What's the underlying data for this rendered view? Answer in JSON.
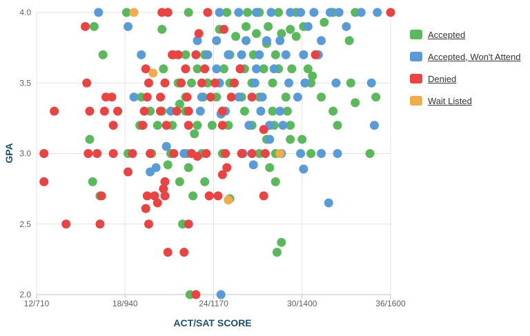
{
  "chart_data": {
    "type": "scatter",
    "title": "",
    "xlabel": "ACT/SAT SCORE",
    "ylabel": "GPA",
    "x_ticks": [
      "12/710",
      "18/940",
      "24/1170",
      "30/1400",
      "36/1600"
    ],
    "x_tick_values": [
      12,
      18,
      24,
      30,
      36
    ],
    "xlim": [
      12,
      36
    ],
    "y_ticks": [
      "2.0",
      "2.5",
      "3.0",
      "3.5",
      "4.0"
    ],
    "y_tick_values": [
      2.0,
      2.5,
      3.0,
      3.5,
      4.0
    ],
    "ylim": [
      2.0,
      4.0
    ],
    "grid": true,
    "legend_position": "right",
    "series": [
      {
        "name": "Accepted",
        "color": "#5cb85c",
        "points": [
          [
            18.1,
            4.0
          ],
          [
            24.9,
            4.0
          ],
          [
            26.3,
            4.0
          ],
          [
            27.1,
            4.0
          ],
          [
            28.4,
            4.0
          ],
          [
            29.6,
            4.0
          ],
          [
            32.1,
            4.0
          ],
          [
            33.6,
            4.0
          ],
          [
            22.3,
            4.0
          ],
          [
            15.9,
            3.9
          ],
          [
            20.5,
            3.88
          ],
          [
            24.4,
            3.88
          ],
          [
            26.2,
            3.9
          ],
          [
            27.7,
            3.9
          ],
          [
            29.2,
            3.88
          ],
          [
            30.1,
            3.9
          ],
          [
            31.5,
            3.93
          ],
          [
            26.9,
            3.85
          ],
          [
            25.5,
            3.83
          ],
          [
            28.6,
            3.85
          ],
          [
            29.6,
            3.83
          ],
          [
            16.5,
            3.7
          ],
          [
            21.3,
            3.7
          ],
          [
            22.1,
            3.7
          ],
          [
            23.4,
            3.7
          ],
          [
            25.1,
            3.7
          ],
          [
            26.7,
            3.7
          ],
          [
            28.2,
            3.7
          ],
          [
            27.6,
            3.78
          ],
          [
            33.2,
            3.8
          ],
          [
            20.6,
            3.6
          ],
          [
            22.9,
            3.6
          ],
          [
            24.7,
            3.6
          ],
          [
            26.1,
            3.6
          ],
          [
            27.4,
            3.6
          ],
          [
            28.4,
            3.6
          ],
          [
            29.3,
            3.6
          ],
          [
            30.4,
            3.6
          ],
          [
            30.7,
            3.55
          ],
          [
            21.6,
            3.5
          ],
          [
            22.5,
            3.5
          ],
          [
            23.6,
            3.5
          ],
          [
            25.1,
            3.5
          ],
          [
            26.6,
            3.5
          ],
          [
            28.0,
            3.5
          ],
          [
            30.2,
            3.5
          ],
          [
            30.6,
            3.5
          ],
          [
            33.3,
            3.5
          ],
          [
            19.1,
            3.4
          ],
          [
            22.1,
            3.4
          ],
          [
            23.3,
            3.4
          ],
          [
            24.2,
            3.4
          ],
          [
            25.9,
            3.4
          ],
          [
            27.1,
            3.4
          ],
          [
            28.9,
            3.4
          ],
          [
            31.3,
            3.4
          ],
          [
            35.0,
            3.4
          ],
          [
            21.7,
            3.35
          ],
          [
            33.6,
            3.36
          ],
          [
            19.7,
            3.3
          ],
          [
            20.5,
            3.3
          ],
          [
            22.1,
            3.3
          ],
          [
            24.6,
            3.3
          ],
          [
            26.1,
            3.3
          ],
          [
            28.0,
            3.3
          ],
          [
            29.0,
            3.3
          ],
          [
            32.1,
            3.3
          ],
          [
            19.0,
            3.2
          ],
          [
            20.2,
            3.2
          ],
          [
            21.2,
            3.2
          ],
          [
            22.9,
            3.2
          ],
          [
            23.9,
            3.2
          ],
          [
            25.0,
            3.2
          ],
          [
            26.6,
            3.2
          ],
          [
            28.1,
            3.2
          ],
          [
            29.2,
            3.2
          ],
          [
            32.4,
            3.2
          ],
          [
            22.7,
            3.14
          ],
          [
            15.6,
            3.1
          ],
          [
            27.6,
            3.1
          ],
          [
            29.2,
            3.1
          ],
          [
            30.0,
            3.1
          ],
          [
            18.2,
            3.0
          ],
          [
            19.8,
            3.0
          ],
          [
            21.1,
            3.0
          ],
          [
            22.2,
            3.0
          ],
          [
            23.2,
            3.0
          ],
          [
            24.6,
            3.0
          ],
          [
            25.9,
            3.0
          ],
          [
            27.1,
            3.0
          ],
          [
            28.2,
            3.0
          ],
          [
            30.6,
            3.0
          ],
          [
            34.6,
            3.0
          ],
          [
            20.9,
            2.92
          ],
          [
            22.3,
            2.9
          ],
          [
            27.8,
            2.9
          ],
          [
            15.8,
            2.8
          ],
          [
            21.7,
            2.8
          ],
          [
            23.4,
            2.8
          ],
          [
            28.2,
            2.8
          ],
          [
            16.3,
            2.7
          ],
          [
            22.6,
            2.7
          ],
          [
            25.1,
            2.68
          ],
          [
            21.9,
            2.5
          ],
          [
            28.6,
            2.37
          ],
          [
            28.3,
            2.3
          ],
          [
            22.4,
            2.0
          ]
        ]
      },
      {
        "name": "Accepted, Won't Attend",
        "color": "#5b9bd5",
        "points": [
          [
            16.2,
            4.0
          ],
          [
            24.4,
            4.0
          ],
          [
            25.7,
            4.0
          ],
          [
            26.9,
            4.0
          ],
          [
            27.9,
            4.0
          ],
          [
            29.2,
            4.0
          ],
          [
            29.9,
            4.0
          ],
          [
            30.8,
            4.0
          ],
          [
            31.9,
            4.0
          ],
          [
            32.5,
            4.0
          ],
          [
            34.0,
            4.0
          ],
          [
            35.1,
            4.0
          ],
          [
            18.2,
            3.9
          ],
          [
            30.4,
            3.9
          ],
          [
            33.0,
            3.9
          ],
          [
            22.9,
            3.8
          ],
          [
            24.2,
            3.8
          ],
          [
            26.2,
            3.8
          ],
          [
            27.6,
            3.8
          ],
          [
            28.5,
            3.8
          ],
          [
            31.3,
            3.8
          ],
          [
            19.1,
            3.7
          ],
          [
            23.6,
            3.7
          ],
          [
            25.0,
            3.7
          ],
          [
            25.9,
            3.7
          ],
          [
            27.1,
            3.7
          ],
          [
            28.9,
            3.7
          ],
          [
            30.1,
            3.7
          ],
          [
            31.1,
            3.7
          ],
          [
            24.2,
            3.6
          ],
          [
            25.8,
            3.6
          ],
          [
            26.9,
            3.6
          ],
          [
            28.1,
            3.6
          ],
          [
            24.4,
            3.5
          ],
          [
            25.4,
            3.5
          ],
          [
            26.8,
            3.5
          ],
          [
            29.1,
            3.5
          ],
          [
            30.2,
            3.5
          ],
          [
            32.3,
            3.5
          ],
          [
            34.7,
            3.5
          ],
          [
            18.6,
            3.4
          ],
          [
            23.2,
            3.4
          ],
          [
            25.7,
            3.4
          ],
          [
            27.3,
            3.4
          ],
          [
            29.7,
            3.4
          ],
          [
            21.1,
            3.3
          ],
          [
            23.1,
            3.3
          ],
          [
            24.8,
            3.3
          ],
          [
            27.2,
            3.3
          ],
          [
            28.5,
            3.3
          ],
          [
            24.5,
            3.28
          ],
          [
            26.4,
            3.2
          ],
          [
            27.8,
            3.2
          ],
          [
            28.7,
            3.2
          ],
          [
            34.9,
            3.2
          ],
          [
            27.8,
            3.1
          ],
          [
            20.8,
            3.05
          ],
          [
            22.0,
            3.0
          ],
          [
            26.0,
            3.0
          ],
          [
            28.6,
            3.0
          ],
          [
            29.9,
            3.0
          ],
          [
            31.3,
            3.0
          ],
          [
            32.4,
            3.0
          ],
          [
            26.7,
            2.92
          ],
          [
            30.1,
            2.89
          ],
          [
            20.1,
            2.9
          ],
          [
            19.7,
            2.87
          ],
          [
            31.8,
            2.65
          ],
          [
            24.5,
            2.0
          ]
        ]
      },
      {
        "name": "Denied",
        "color": "#e84444",
        "points": [
          [
            20.5,
            4.0
          ],
          [
            20.9,
            4.0
          ],
          [
            23.6,
            4.0
          ],
          [
            36.0,
            4.0
          ],
          [
            15.3,
            3.9
          ],
          [
            23.0,
            3.85
          ],
          [
            24.7,
            3.88
          ],
          [
            21.2,
            3.7
          ],
          [
            21.6,
            3.7
          ],
          [
            22.8,
            3.7
          ],
          [
            30.9,
            3.7
          ],
          [
            19.4,
            3.6
          ],
          [
            22.1,
            3.6
          ],
          [
            23.4,
            3.6
          ],
          [
            25.8,
            3.6
          ],
          [
            15.4,
            3.5
          ],
          [
            19.6,
            3.5
          ],
          [
            20.7,
            3.5
          ],
          [
            21.8,
            3.5
          ],
          [
            23.2,
            3.5
          ],
          [
            24.1,
            3.5
          ],
          [
            25.4,
            3.5
          ],
          [
            16.7,
            3.4
          ],
          [
            17.1,
            3.4
          ],
          [
            19.5,
            3.4
          ],
          [
            20.4,
            3.4
          ],
          [
            22.2,
            3.4
          ],
          [
            23.8,
            3.4
          ],
          [
            25.2,
            3.4
          ],
          [
            26.6,
            3.4
          ],
          [
            13.2,
            3.3
          ],
          [
            15.6,
            3.3
          ],
          [
            16.6,
            3.3
          ],
          [
            17.5,
            3.3
          ],
          [
            19.3,
            3.3
          ],
          [
            20.4,
            3.3
          ],
          [
            21.5,
            3.3
          ],
          [
            22.3,
            3.3
          ],
          [
            24.6,
            3.3
          ],
          [
            17.2,
            3.2
          ],
          [
            19.2,
            3.2
          ],
          [
            20.8,
            3.2
          ],
          [
            22.3,
            3.2
          ],
          [
            24.6,
            3.2
          ],
          [
            27.4,
            3.17
          ],
          [
            12.5,
            3.0
          ],
          [
            15.5,
            3.0
          ],
          [
            16.1,
            3.0
          ],
          [
            17.2,
            3.0
          ],
          [
            18.5,
            3.0
          ],
          [
            19.7,
            3.0
          ],
          [
            21.3,
            3.0
          ],
          [
            22.5,
            3.0
          ],
          [
            23.5,
            3.0
          ],
          [
            24.8,
            3.0
          ],
          [
            25.9,
            3.0
          ],
          [
            26.6,
            3.0
          ],
          [
            27.5,
            3.0
          ],
          [
            22.9,
            2.98
          ],
          [
            24.9,
            2.9
          ],
          [
            18.2,
            2.87
          ],
          [
            24.6,
            2.85
          ],
          [
            12.5,
            2.8
          ],
          [
            20.7,
            2.8
          ],
          [
            20.6,
            2.75
          ],
          [
            16.4,
            2.7
          ],
          [
            19.5,
            2.7
          ],
          [
            20.0,
            2.7
          ],
          [
            20.7,
            2.7
          ],
          [
            23.7,
            2.7
          ],
          [
            24.3,
            2.7
          ],
          [
            27.4,
            2.7
          ],
          [
            19.4,
            2.61
          ],
          [
            20.2,
            2.65
          ],
          [
            14.0,
            2.5
          ],
          [
            16.3,
            2.5
          ],
          [
            19.6,
            2.5
          ],
          [
            22.3,
            2.5
          ],
          [
            20.9,
            2.3
          ],
          [
            22.0,
            2.3
          ],
          [
            22.8,
            2.0
          ]
        ]
      },
      {
        "name": "Wait Listed",
        "color": "#f0ad4e",
        "points": [
          [
            18.6,
            4.0
          ],
          [
            19.9,
            3.57
          ],
          [
            28.5,
            3.0
          ],
          [
            25.0,
            2.67
          ]
        ]
      }
    ]
  }
}
